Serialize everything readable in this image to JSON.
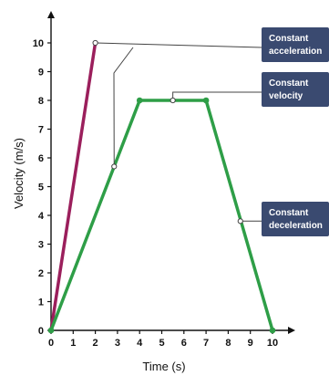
{
  "chart_data": {
    "type": "line",
    "xlabel": "Time (s)",
    "ylabel": "Velocity (m/s)",
    "xlim": [
      0,
      10
    ],
    "ylim": [
      0,
      10
    ],
    "x_ticks": [
      0,
      1,
      2,
      3,
      4,
      5,
      6,
      7,
      8,
      9,
      10
    ],
    "y_ticks": [
      0,
      1,
      2,
      3,
      4,
      5,
      6,
      7,
      8,
      9,
      10
    ],
    "grid": false,
    "series": [
      {
        "color": "#9b1f5c",
        "points": [
          [
            0,
            0
          ],
          [
            2,
            10
          ]
        ]
      },
      {
        "color": "#2e9e47",
        "points": [
          [
            0,
            0
          ],
          [
            4,
            8
          ],
          [
            7,
            8
          ],
          [
            10,
            0
          ]
        ],
        "markers": [
          [
            0,
            0
          ],
          [
            4,
            8
          ],
          [
            7,
            8
          ],
          [
            10,
            0
          ]
        ]
      }
    ],
    "annotations": [
      {
        "lines": [
          "Constant",
          "acceleration"
        ],
        "points": [
          [
            2,
            10
          ],
          [
            2.85,
            5.7
          ]
        ]
      },
      {
        "lines": [
          "Constant",
          "velocity"
        ],
        "points": [
          [
            5.5,
            8
          ]
        ]
      },
      {
        "lines": [
          "Constant",
          "deceleration"
        ],
        "points": [
          [
            8.55,
            3.8
          ]
        ]
      }
    ],
    "colors": {
      "callout_box": "#3a4a70",
      "axis": "#111111",
      "leader": "#444444"
    }
  }
}
